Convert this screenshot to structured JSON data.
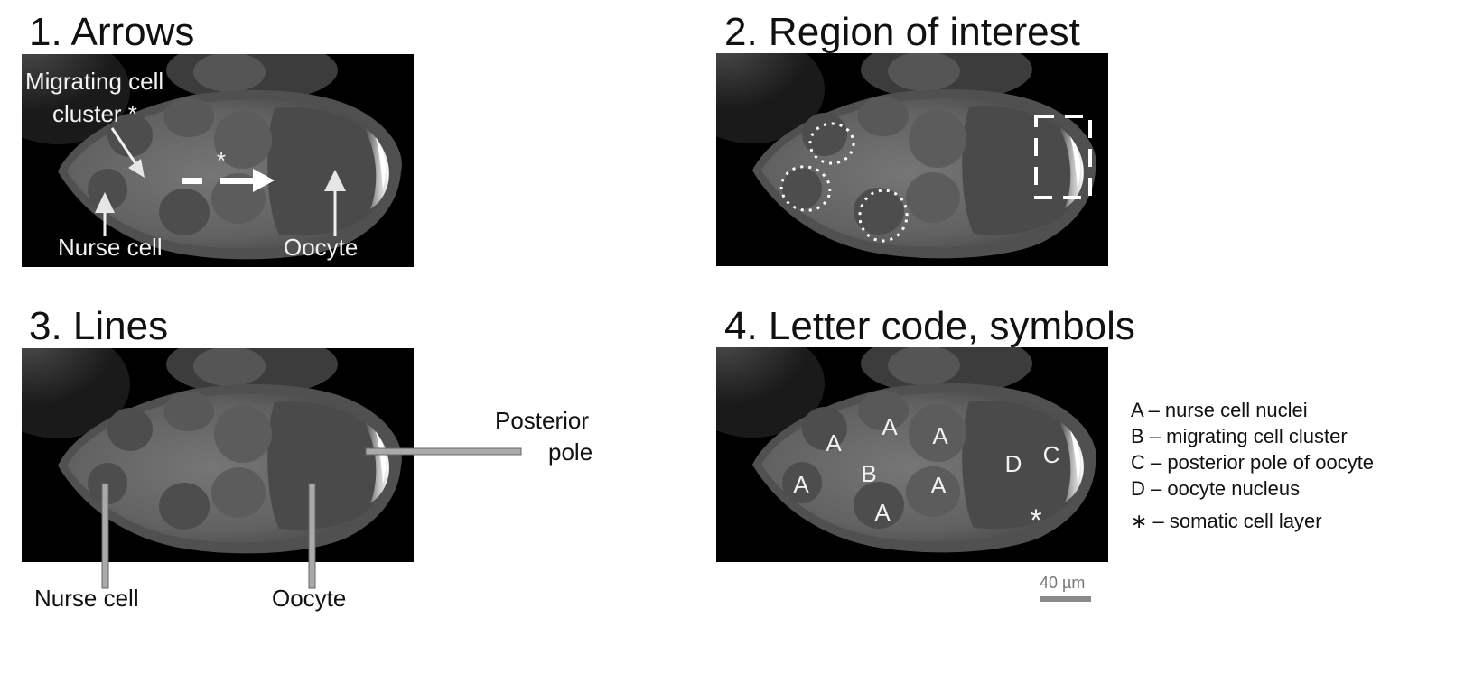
{
  "panels": [
    {
      "title": "1. Arrows"
    },
    {
      "title": "2. Region of interest"
    },
    {
      "title": "3. Lines"
    },
    {
      "title": "4. Letter code, symbols"
    }
  ],
  "arrows": {
    "migrating_label_line1": "Migrating cell",
    "migrating_label_line2": "cluster *",
    "asterisk": "*",
    "nurse_cell": "Nurse cell",
    "oocyte": "Oocyte"
  },
  "lines": {
    "posterior_line1": "Posterior",
    "posterior_line2": "pole",
    "nurse_cell": "Nurse cell",
    "oocyte": "Oocyte"
  },
  "letters": {
    "items": [
      "A",
      "A",
      "A",
      "A",
      "A",
      "A",
      "B",
      "C",
      "D"
    ],
    "asterisk": "*"
  },
  "legend": [
    {
      "key": "A",
      "text": "A – nurse cell nuclei"
    },
    {
      "key": "B",
      "text": "B – migrating cell cluster"
    },
    {
      "key": "C",
      "text": "C – posterior pole of oocyte"
    },
    {
      "key": "D",
      "text": "D – oocyte nucleus"
    },
    {
      "key": "*",
      "text": "∗  – somatic cell layer"
    }
  ],
  "scale": {
    "label": "40 µm"
  },
  "colors": {
    "panel_bg": "#000000",
    "tissue": "#6a6a6a",
    "pole": "#ffffff",
    "line_gray": "#8c8c8c"
  }
}
